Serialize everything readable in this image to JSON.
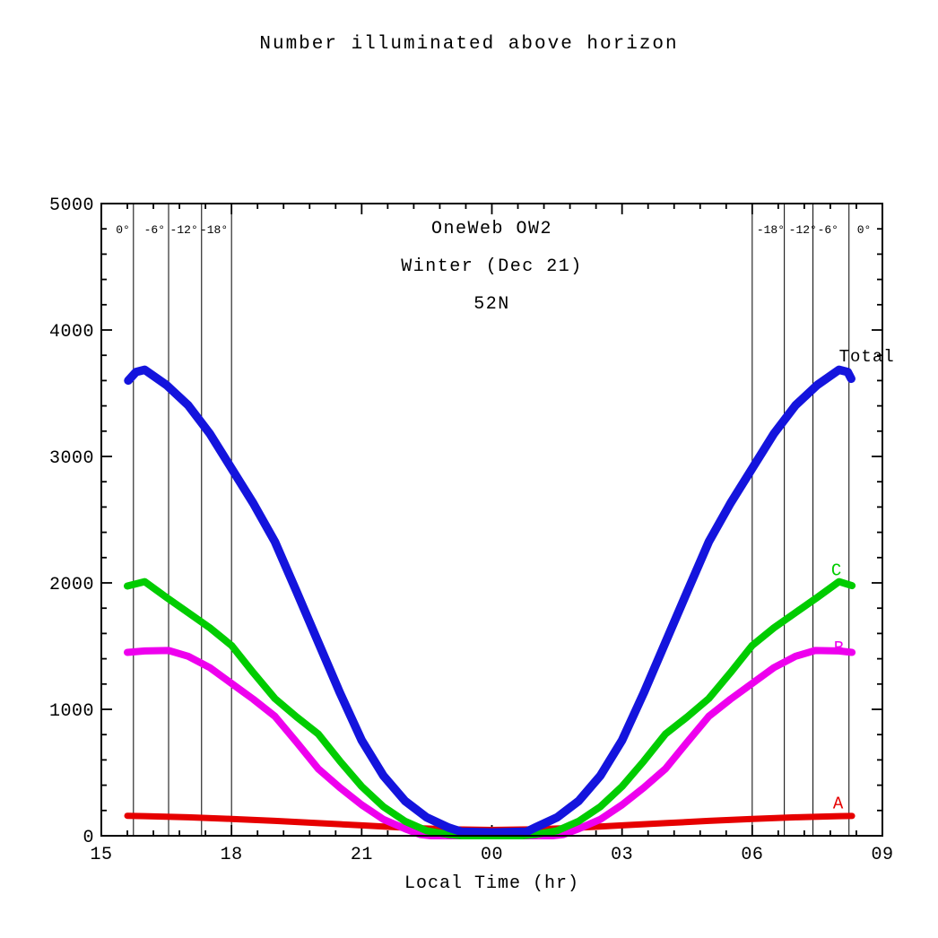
{
  "chart_data": {
    "type": "line",
    "title": "Number illuminated above horizon",
    "xlabel": "Local Time (hr)",
    "ylabel": "",
    "annotations": [
      "OneWeb OW2",
      "Winter (Dec 21)",
      "52N"
    ],
    "grid": false,
    "x_axis": {
      "start_hour": 15,
      "end_hour": 33,
      "major_step_hours": 3,
      "minor_divisions": 5,
      "major_ticks": [
        {
          "hour": 15,
          "label": "15"
        },
        {
          "hour": 18,
          "label": "18"
        },
        {
          "hour": 21,
          "label": "21"
        },
        {
          "hour": 24,
          "label": "00"
        },
        {
          "hour": 27,
          "label": "03"
        },
        {
          "hour": 30,
          "label": "06"
        },
        {
          "hour": 33,
          "label": "09"
        }
      ]
    },
    "y_axis": {
      "min": 0,
      "max": 5000,
      "major_step": 1000,
      "minor_step": 200,
      "major_ticks": [
        {
          "value": 0,
          "label": "0"
        },
        {
          "value": 1000,
          "label": "1000"
        },
        {
          "value": 2000,
          "label": "2000"
        },
        {
          "value": 3000,
          "label": "3000"
        },
        {
          "value": 4000,
          "label": "4000"
        },
        {
          "value": 5000,
          "label": "5000"
        }
      ]
    },
    "twilight_lines": [
      {
        "label": "0°",
        "hour": 15.74,
        "side": "left"
      },
      {
        "label": "-6°",
        "hour": 16.55,
        "side": "left"
      },
      {
        "label": "-12°",
        "hour": 17.31,
        "side": "left"
      },
      {
        "label": "-18°",
        "hour": 18.0,
        "side": "left"
      },
      {
        "label": "-18°",
        "hour": 30.0,
        "side": "right"
      },
      {
        "label": "-12°",
        "hour": 30.74,
        "side": "right"
      },
      {
        "label": "-6°",
        "hour": 31.4,
        "side": "right"
      },
      {
        "label": "0°",
        "hour": 32.23,
        "side": "right",
        "label_dx": 9
      }
    ],
    "series": [
      {
        "name": "A",
        "color": "#e60000",
        "label_color": "#e60000",
        "stroke_width": 7,
        "label_at": {
          "hour": 31.86,
          "value": 265
        },
        "points": [
          [
            15.6,
            158
          ],
          [
            16,
            155
          ],
          [
            17,
            146
          ],
          [
            18,
            133
          ],
          [
            19,
            118
          ],
          [
            20,
            100
          ],
          [
            21,
            82
          ],
          [
            22,
            64
          ],
          [
            23,
            52
          ],
          [
            24,
            46
          ],
          [
            25,
            52
          ],
          [
            26,
            64
          ],
          [
            27,
            82
          ],
          [
            28,
            100
          ],
          [
            29,
            118
          ],
          [
            30,
            133
          ],
          [
            31,
            146
          ],
          [
            32,
            155
          ],
          [
            32.3,
            157
          ]
        ]
      },
      {
        "name": "B",
        "color": "#ee00ee",
        "label_color": "#ee00ee",
        "stroke_width": 8,
        "label_at": {
          "hour": 31.88,
          "value": 1495
        },
        "points": [
          [
            15.6,
            1450
          ],
          [
            16,
            1462
          ],
          [
            16.55,
            1465
          ],
          [
            17,
            1420
          ],
          [
            17.5,
            1330
          ],
          [
            18,
            1205
          ],
          [
            18.5,
            1080
          ],
          [
            19,
            945
          ],
          [
            19.5,
            740
          ],
          [
            20,
            530
          ],
          [
            20.5,
            380
          ],
          [
            21,
            245
          ],
          [
            21.5,
            130
          ],
          [
            22,
            55
          ],
          [
            22.35,
            10
          ],
          [
            22.6,
            0
          ],
          [
            23.5,
            0
          ],
          [
            24.5,
            0
          ],
          [
            25.4,
            0
          ],
          [
            25.65,
            10
          ],
          [
            26,
            55
          ],
          [
            26.5,
            130
          ],
          [
            27,
            245
          ],
          [
            27.5,
            380
          ],
          [
            28,
            530
          ],
          [
            28.5,
            740
          ],
          [
            29,
            945
          ],
          [
            29.5,
            1080
          ],
          [
            30,
            1205
          ],
          [
            30.5,
            1330
          ],
          [
            31,
            1420
          ],
          [
            31.45,
            1465
          ],
          [
            32,
            1462
          ],
          [
            32.3,
            1450
          ]
        ]
      },
      {
        "name": "C",
        "color": "#00cc00",
        "label_color": "#00cc00",
        "stroke_width": 8,
        "label_at": {
          "hour": 31.82,
          "value": 2110
        },
        "points": [
          [
            15.6,
            1975
          ],
          [
            16,
            2010
          ],
          [
            16.5,
            1885
          ],
          [
            17,
            1765
          ],
          [
            17.5,
            1645
          ],
          [
            18,
            1505
          ],
          [
            18.5,
            1290
          ],
          [
            19,
            1085
          ],
          [
            19.5,
            940
          ],
          [
            20,
            805
          ],
          [
            20.5,
            590
          ],
          [
            21,
            390
          ],
          [
            21.5,
            230
          ],
          [
            22,
            115
          ],
          [
            22.5,
            40
          ],
          [
            23,
            10
          ],
          [
            23.3,
            0
          ],
          [
            24,
            0
          ],
          [
            24.7,
            0
          ],
          [
            25,
            10
          ],
          [
            25.5,
            40
          ],
          [
            26,
            115
          ],
          [
            26.5,
            230
          ],
          [
            27,
            390
          ],
          [
            27.5,
            590
          ],
          [
            28,
            805
          ],
          [
            28.5,
            940
          ],
          [
            29,
            1085
          ],
          [
            29.5,
            1290
          ],
          [
            30,
            1505
          ],
          [
            30.5,
            1645
          ],
          [
            31,
            1765
          ],
          [
            31.5,
            1885
          ],
          [
            32,
            2010
          ],
          [
            32.3,
            1978
          ]
        ]
      },
      {
        "name": "Total",
        "color": "#1414dd",
        "label_color": "#000000",
        "stroke_width": 9.5,
        "label_at": {
          "hour": 32.0,
          "value": 3800
        },
        "points": [
          [
            15.62,
            3600
          ],
          [
            15.8,
            3668
          ],
          [
            16,
            3685
          ],
          [
            16.5,
            3565
          ],
          [
            17,
            3405
          ],
          [
            17.5,
            3180
          ],
          [
            18,
            2905
          ],
          [
            18.5,
            2630
          ],
          [
            19,
            2325
          ],
          [
            19.5,
            1930
          ],
          [
            20,
            1530
          ],
          [
            20.5,
            1130
          ],
          [
            21,
            755
          ],
          [
            21.5,
            475
          ],
          [
            22,
            275
          ],
          [
            22.5,
            145
          ],
          [
            23,
            65
          ],
          [
            23.3,
            32
          ],
          [
            24,
            27
          ],
          [
            24.8,
            32
          ],
          [
            25,
            65
          ],
          [
            25.5,
            145
          ],
          [
            26,
            275
          ],
          [
            26.5,
            475
          ],
          [
            27,
            755
          ],
          [
            27.5,
            1130
          ],
          [
            28,
            1530
          ],
          [
            28.5,
            1930
          ],
          [
            29,
            2325
          ],
          [
            29.5,
            2630
          ],
          [
            30,
            2905
          ],
          [
            30.5,
            3180
          ],
          [
            31,
            3405
          ],
          [
            31.5,
            3565
          ],
          [
            32,
            3685
          ],
          [
            32.2,
            3668
          ],
          [
            32.28,
            3615
          ]
        ]
      }
    ]
  }
}
